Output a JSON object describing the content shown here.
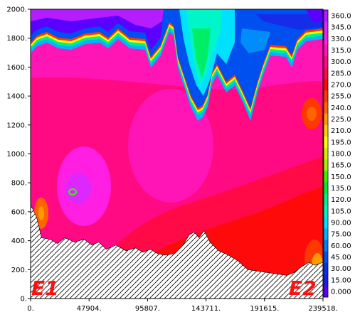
{
  "chart_data": {
    "type": "heatmap",
    "title": "",
    "xlabel": "",
    "ylabel": "",
    "xlim": [
      0,
      239518
    ],
    "ylim": [
      0,
      2000
    ],
    "x_ticks": [
      0,
      47904,
      95807,
      143711,
      191615,
      239518
    ],
    "x_tick_labels": [
      "0.",
      "47904.",
      "95807.",
      "143711.",
      "191615.",
      "239518."
    ],
    "y_ticks": [
      0,
      200,
      400,
      600,
      800,
      1000,
      1200,
      1400,
      1600,
      1800,
      2000
    ],
    "y_tick_labels": [
      "0.",
      "200.",
      "400.",
      "600.",
      "800.",
      "1000.",
      "1200.",
      "1400.",
      "1600.",
      "1800.",
      "2000."
    ],
    "colorbar": {
      "levels": [
        0,
        15,
        30,
        45,
        60,
        75,
        90,
        105,
        120,
        135,
        150,
        165,
        180,
        195,
        210,
        225,
        240,
        255,
        270,
        285,
        300,
        315,
        330,
        345,
        360
      ],
      "labels": [
        "0.000",
        "15.00",
        "30.00",
        "45.00",
        "60.00",
        "75.00",
        "90.00",
        "105.0",
        "120.0",
        "135.0",
        "150.0",
        "165.0",
        "180.0",
        "195.0",
        "210.0",
        "225.0",
        "240.0",
        "255.0",
        "270.0",
        "285.0",
        "300.0",
        "315.0",
        "330.0",
        "345.0",
        "360.0"
      ],
      "colors": [
        "#5a00ff",
        "#1e1ee6",
        "#0a32e6",
        "#0050f0",
        "#0082ff",
        "#00b4ff",
        "#00e1ff",
        "#00f5c8",
        "#00f08c",
        "#00eb3c",
        "#3cf000",
        "#a0f000",
        "#d2f000",
        "#ffff00",
        "#ffcd00",
        "#ff9b00",
        "#ff6400",
        "#ff3700",
        "#ff0a0a",
        "#ff0a46",
        "#ff0a82",
        "#ff14b4",
        "#ff1ee1",
        "#dc28ff",
        "#b41eff"
      ]
    },
    "terrain_top": [
      [
        0,
        650
      ],
      [
        5000,
        560
      ],
      [
        9000,
        420
      ],
      [
        16000,
        410
      ],
      [
        22000,
        380
      ],
      [
        28000,
        420
      ],
      [
        36000,
        390
      ],
      [
        44000,
        410
      ],
      [
        50000,
        370
      ],
      [
        56000,
        390
      ],
      [
        62000,
        340
      ],
      [
        70000,
        370
      ],
      [
        78000,
        330
      ],
      [
        86000,
        350
      ],
      [
        92000,
        320
      ],
      [
        98000,
        340
      ],
      [
        104000,
        310
      ],
      [
        110000,
        300
      ],
      [
        118000,
        310
      ],
      [
        124000,
        360
      ],
      [
        130000,
        440
      ],
      [
        134000,
        460
      ],
      [
        138000,
        420
      ],
      [
        142000,
        470
      ],
      [
        147000,
        390
      ],
      [
        154000,
        330
      ],
      [
        162000,
        300
      ],
      [
        170000,
        260
      ],
      [
        178000,
        200
      ],
      [
        186000,
        190
      ],
      [
        194000,
        180
      ],
      [
        202000,
        170
      ],
      [
        210000,
        160
      ],
      [
        216000,
        180
      ],
      [
        222000,
        220
      ],
      [
        228000,
        250
      ],
      [
        233000,
        230
      ],
      [
        239518,
        250
      ]
    ],
    "annotations": [
      "E1",
      "E2"
    ],
    "grid": false,
    "legend": "colorbar-right"
  }
}
